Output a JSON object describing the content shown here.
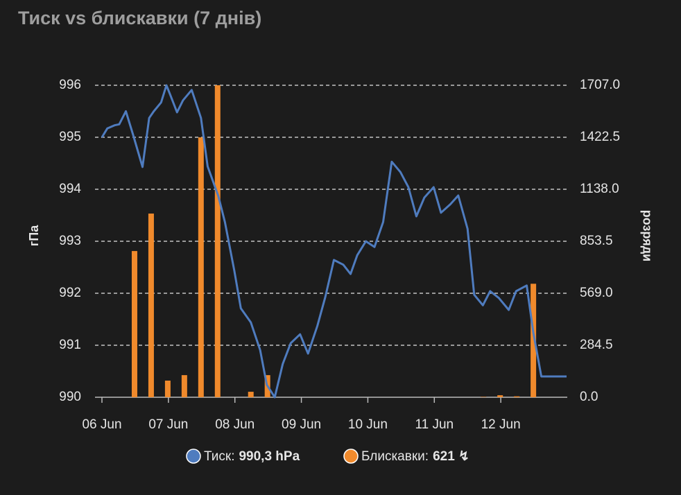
{
  "chart_data": {
    "type": "bar-line",
    "title": "Тиск vs блискавки (7 днів)",
    "y_label": "гПа",
    "y2_label": "розряди",
    "xlim": [
      0,
      7
    ],
    "xticks": [
      {
        "value": 0,
        "label": "06 Jun"
      },
      {
        "value": 1,
        "label": "07 Jun"
      },
      {
        "value": 2,
        "label": "08 Jun"
      },
      {
        "value": 3,
        "label": "09 Jun"
      },
      {
        "value": 4,
        "label": "10 Jun"
      },
      {
        "value": 5,
        "label": "11 Jun"
      },
      {
        "value": 6,
        "label": "12 Jun"
      }
    ],
    "ylim": [
      990,
      996
    ],
    "yticks": [
      990,
      991,
      992,
      993,
      994,
      995,
      996
    ],
    "y2lim": [
      0,
      1707
    ],
    "y2ticks": [
      {
        "value": 0,
        "label": "0.0"
      },
      284.5,
      {
        "value": 569,
        "label": "569.0"
      },
      853.5,
      {
        "value": 1138,
        "label": "1138.0"
      },
      1422.5,
      {
        "value": 1707,
        "label": "1707.0"
      }
    ],
    "grid": true,
    "series": [
      {
        "name": "Тиск:",
        "type": "line",
        "color": "#4f7cbf",
        "legend_value": "990,3 hPa",
        "x": [
          0,
          0.08,
          0.19,
          0.26,
          0.36,
          0.47,
          0.61,
          0.71,
          0.78,
          0.89,
          0.97,
          1.03,
          1.13,
          1.22,
          1.35,
          1.49,
          1.59,
          1.75,
          1.85,
          1.99,
          2.09,
          2.24,
          2.38,
          2.48,
          2.6,
          2.72,
          2.84,
          2.98,
          3.1,
          3.24,
          3.36,
          3.49,
          3.63,
          3.74,
          3.84,
          3.97,
          4.1,
          4.23,
          4.36,
          4.49,
          4.61,
          4.73,
          4.85,
          4.99,
          5.1,
          5.24,
          5.36,
          5.5,
          5.6,
          5.73,
          5.84,
          5.97,
          6.12,
          6.23,
          6.39,
          6.49,
          6.61,
          6.99
        ],
        "values": [
          995.0,
          995.17,
          995.23,
          995.25,
          995.5,
          995.04,
          994.43,
          995.37,
          995.5,
          995.67,
          996.0,
          995.81,
          995.48,
          995.71,
          995.91,
          995.37,
          994.44,
          993.87,
          993.37,
          992.44,
          991.71,
          991.44,
          990.91,
          990.24,
          990.0,
          990.64,
          991.04,
          991.21,
          990.84,
          991.37,
          991.93,
          992.64,
          992.55,
          992.37,
          992.73,
          993.0,
          992.89,
          993.37,
          994.53,
          994.33,
          994.04,
          993.48,
          993.84,
          994.04,
          993.55,
          993.71,
          993.88,
          993.24,
          991.97,
          991.77,
          992.04,
          991.91,
          991.68,
          992.04,
          992.15,
          991.24,
          990.4,
          990.4
        ]
      },
      {
        "name": "Блискавки:",
        "type": "bar",
        "axis": "y2",
        "color": "#f08a2c",
        "legend_value": "621 ↯",
        "x": [
          0.49,
          0.74,
          0.99,
          1.24,
          1.49,
          1.74,
          2.24,
          2.49,
          5.74,
          5.99,
          6.24,
          6.49
        ],
        "values": [
          800,
          1005,
          91,
          121,
          1422,
          1707,
          30,
          121,
          2,
          11,
          5,
          621
        ]
      }
    ]
  }
}
